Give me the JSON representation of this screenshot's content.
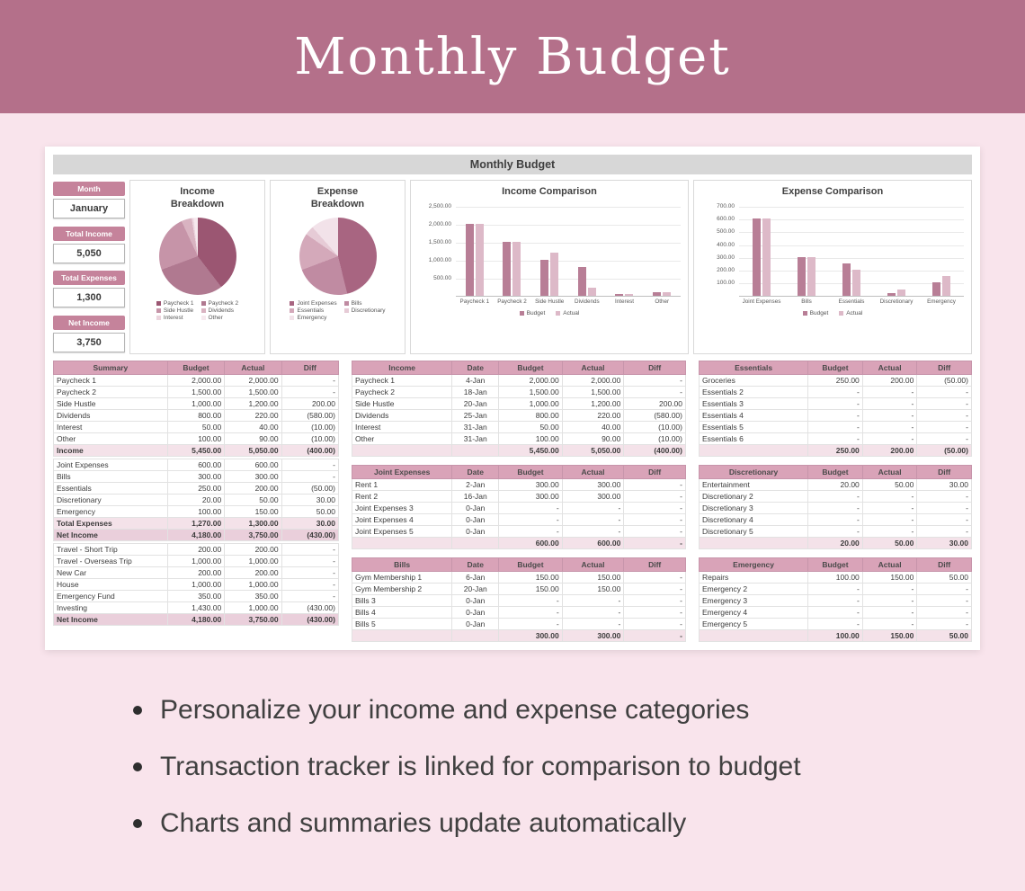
{
  "banner": {
    "title": "Monthly Budget"
  },
  "sheet": {
    "title": "Monthly Budget",
    "kpis": [
      {
        "label": "Month",
        "value": "January"
      },
      {
        "label": "Total Income",
        "value": "5,050"
      },
      {
        "label": "Total Expenses",
        "value": "1,300"
      },
      {
        "label": "Net Income",
        "value": "3,750"
      }
    ]
  },
  "colors": {
    "banner_bg": "#b4708a",
    "page_bg": "#f9e4ec",
    "kpi_header": "#c5839b",
    "table_header": "#d9a3b8",
    "total_row": "#f4e2e9",
    "net_row": "#eacfdb",
    "budget_bar": "#b87e96",
    "actual_bar": "#ddb9c8"
  },
  "chart_data": [
    {
      "type": "pie",
      "title": "Income Breakdown",
      "labels": [
        "Paycheck 1",
        "Paycheck 2",
        "Side Hustle",
        "Dividends",
        "Interest",
        "Other"
      ],
      "values": [
        2000,
        1500,
        1200,
        220,
        40,
        90
      ],
      "colors": [
        "#9b5672",
        "#b07990",
        "#c694a8",
        "#d9b3c1",
        "#ecd5de",
        "#f6e9ee"
      ],
      "legend_position": "bottom"
    },
    {
      "type": "pie",
      "title": "Expense Breakdown",
      "labels": [
        "Joint Expenses",
        "Bills",
        "Essentials",
        "Discretionary",
        "Emergency"
      ],
      "values": [
        600,
        300,
        200,
        50,
        150
      ],
      "colors": [
        "#a86581",
        "#c08ba2",
        "#d4a9ba",
        "#e6cbd6",
        "#f2e2e9"
      ],
      "legend_position": "bottom"
    },
    {
      "type": "bar",
      "title": "Income Comparison",
      "categories": [
        "Paycheck 1",
        "Paycheck 2",
        "Side Hustle",
        "Dividends",
        "Interest",
        "Other"
      ],
      "series": [
        {
          "name": "Budget",
          "color": "#b87e96",
          "values": [
            2000,
            1500,
            1000,
            800,
            50,
            100
          ]
        },
        {
          "name": "Actual",
          "color": "#ddb9c8",
          "values": [
            2000,
            1500,
            1200,
            220,
            40,
            90
          ]
        }
      ],
      "ylim": [
        0,
        2500
      ],
      "ytick_labels": [
        "2,500.00",
        "2,000.00",
        "1,500.00",
        "1,000.00",
        "500.00"
      ],
      "ytick_values": [
        2500,
        2000,
        1500,
        1000,
        500
      ],
      "grid": true,
      "legend_position": "bottom"
    },
    {
      "type": "bar",
      "title": "Expense Comparison",
      "categories": [
        "Joint Expenses",
        "Bills",
        "Essentials",
        "Discretionary",
        "Emergency"
      ],
      "series": [
        {
          "name": "Budget",
          "color": "#b87e96",
          "values": [
            600,
            300,
            250,
            20,
            100
          ]
        },
        {
          "name": "Actual",
          "color": "#ddb9c8",
          "values": [
            600,
            300,
            200,
            50,
            150
          ]
        }
      ],
      "ylim": [
        0,
        700
      ],
      "ytick_labels": [
        "700.00",
        "600.00",
        "500.00",
        "400.00",
        "300.00",
        "200.00",
        "100.00"
      ],
      "ytick_values": [
        700,
        600,
        500,
        400,
        300,
        200,
        100
      ],
      "grid": true,
      "legend_position": "bottom"
    }
  ],
  "tables": {
    "summary": {
      "headers": [
        "Summary",
        "Budget",
        "Actual",
        "Diff"
      ],
      "widths": [
        "40%",
        "20%",
        "20%",
        "20%"
      ],
      "rows": [
        {
          "cells": [
            "Paycheck 1",
            "2,000.00",
            "2,000.00",
            "-"
          ]
        },
        {
          "cells": [
            "Paycheck 2",
            "1,500.00",
            "1,500.00",
            "-"
          ]
        },
        {
          "cells": [
            "Side Hustle",
            "1,000.00",
            "1,200.00",
            "200.00"
          ]
        },
        {
          "cells": [
            "Dividends",
            "800.00",
            "220.00",
            "(580.00)"
          ]
        },
        {
          "cells": [
            "Interest",
            "50.00",
            "40.00",
            "(10.00)"
          ]
        },
        {
          "cells": [
            "Other",
            "100.00",
            "90.00",
            "(10.00)"
          ]
        },
        {
          "cells": [
            "Income",
            "5,450.00",
            "5,050.00",
            "(400.00)"
          ],
          "style": "total"
        },
        {
          "cells": [
            "",
            "",
            "",
            ""
          ],
          "style": "blank"
        },
        {
          "cells": [
            "Joint Expenses",
            "600.00",
            "600.00",
            "-"
          ]
        },
        {
          "cells": [
            "Bills",
            "300.00",
            "300.00",
            "-"
          ]
        },
        {
          "cells": [
            "Essentials",
            "250.00",
            "200.00",
            "(50.00)"
          ]
        },
        {
          "cells": [
            "Discretionary",
            "20.00",
            "50.00",
            "30.00"
          ]
        },
        {
          "cells": [
            "Emergency",
            "100.00",
            "150.00",
            "50.00"
          ]
        },
        {
          "cells": [
            "Total Expenses",
            "1,270.00",
            "1,300.00",
            "30.00"
          ],
          "style": "total"
        },
        {
          "cells": [
            "Net Income",
            "4,180.00",
            "3,750.00",
            "(430.00)"
          ],
          "style": "net"
        },
        {
          "cells": [
            "",
            "",
            "",
            ""
          ],
          "style": "blank"
        },
        {
          "cells": [
            "Travel - Short Trip",
            "200.00",
            "200.00",
            "-"
          ]
        },
        {
          "cells": [
            "Travel - Overseas Trip",
            "1,000.00",
            "1,000.00",
            "-"
          ]
        },
        {
          "cells": [
            "New Car",
            "200.00",
            "200.00",
            "-"
          ]
        },
        {
          "cells": [
            "House",
            "1,000.00",
            "1,000.00",
            "-"
          ]
        },
        {
          "cells": [
            "Emergency Fund",
            "350.00",
            "350.00",
            "-"
          ]
        },
        {
          "cells": [
            "Investing",
            "1,430.00",
            "1,000.00",
            "(430.00)"
          ]
        },
        {
          "cells": [
            "Net Income",
            "4,180.00",
            "3,750.00",
            "(430.00)"
          ],
          "style": "net"
        }
      ]
    },
    "income": {
      "headers": [
        "Income",
        "Date",
        "Budget",
        "Actual",
        "Diff"
      ],
      "widths": [
        "30%",
        "14%",
        "19%",
        "18.5%",
        "18.5%"
      ],
      "rows": [
        {
          "cells": [
            "Paycheck 1",
            "4-Jan",
            "2,000.00",
            "2,000.00",
            "-"
          ]
        },
        {
          "cells": [
            "Paycheck 2",
            "18-Jan",
            "1,500.00",
            "1,500.00",
            "-"
          ]
        },
        {
          "cells": [
            "Side Hustle",
            "20-Jan",
            "1,000.00",
            "1,200.00",
            "200.00"
          ]
        },
        {
          "cells": [
            "Dividends",
            "25-Jan",
            "800.00",
            "220.00",
            "(580.00)"
          ]
        },
        {
          "cells": [
            "Interest",
            "31-Jan",
            "50.00",
            "40.00",
            "(10.00)"
          ]
        },
        {
          "cells": [
            "Other",
            "31-Jan",
            "100.00",
            "90.00",
            "(10.00)"
          ]
        },
        {
          "cells": [
            "",
            "",
            "5,450.00",
            "5,050.00",
            "(400.00)"
          ],
          "style": "total"
        }
      ]
    },
    "joint_expenses": {
      "headers": [
        "Joint Expenses",
        "Date",
        "Budget",
        "Actual",
        "Diff"
      ],
      "widths": [
        "30%",
        "14%",
        "19%",
        "18.5%",
        "18.5%"
      ],
      "rows": [
        {
          "cells": [
            "Rent 1",
            "2-Jan",
            "300.00",
            "300.00",
            "-"
          ]
        },
        {
          "cells": [
            "Rent 2",
            "16-Jan",
            "300.00",
            "300.00",
            "-"
          ]
        },
        {
          "cells": [
            "Joint Expenses 3",
            "0-Jan",
            "-",
            "-",
            "-"
          ]
        },
        {
          "cells": [
            "Joint Expenses 4",
            "0-Jan",
            "-",
            "-",
            "-"
          ]
        },
        {
          "cells": [
            "Joint Expenses 5",
            "0-Jan",
            "-",
            "-",
            "-"
          ]
        },
        {
          "cells": [
            "",
            "",
            "600.00",
            "600.00",
            "-"
          ],
          "style": "total"
        }
      ]
    },
    "bills": {
      "headers": [
        "Bills",
        "Date",
        "Budget",
        "Actual",
        "Diff"
      ],
      "widths": [
        "30%",
        "14%",
        "19%",
        "18.5%",
        "18.5%"
      ],
      "rows": [
        {
          "cells": [
            "Gym Membership 1",
            "6-Jan",
            "150.00",
            "150.00",
            "-"
          ]
        },
        {
          "cells": [
            "Gym Membership 2",
            "20-Jan",
            "150.00",
            "150.00",
            "-"
          ]
        },
        {
          "cells": [
            "Bills 3",
            "0-Jan",
            "-",
            "-",
            "-"
          ]
        },
        {
          "cells": [
            "Bills 4",
            "0-Jan",
            "-",
            "-",
            "-"
          ]
        },
        {
          "cells": [
            "Bills 5",
            "0-Jan",
            "-",
            "-",
            "-"
          ]
        },
        {
          "cells": [
            "",
            "",
            "300.00",
            "300.00",
            "-"
          ],
          "style": "total"
        }
      ]
    },
    "essentials": {
      "headers": [
        "Essentials",
        "Budget",
        "Actual",
        "Diff"
      ],
      "widths": [
        "40%",
        "20%",
        "20%",
        "20%"
      ],
      "rows": [
        {
          "cells": [
            "Groceries",
            "250.00",
            "200.00",
            "(50.00)"
          ]
        },
        {
          "cells": [
            "Essentials 2",
            "-",
            "-",
            "-"
          ]
        },
        {
          "cells": [
            "Essentials 3",
            "-",
            "-",
            "-"
          ]
        },
        {
          "cells": [
            "Essentials 4",
            "-",
            "-",
            "-"
          ]
        },
        {
          "cells": [
            "Essentials 5",
            "-",
            "-",
            "-"
          ]
        },
        {
          "cells": [
            "Essentials 6",
            "-",
            "-",
            "-"
          ]
        },
        {
          "cells": [
            "",
            "250.00",
            "200.00",
            "(50.00)"
          ],
          "style": "total"
        }
      ]
    },
    "discretionary": {
      "headers": [
        "Discretionary",
        "Budget",
        "Actual",
        "Diff"
      ],
      "widths": [
        "40%",
        "20%",
        "20%",
        "20%"
      ],
      "rows": [
        {
          "cells": [
            "Entertainment",
            "20.00",
            "50.00",
            "30.00"
          ]
        },
        {
          "cells": [
            "Discretionary 2",
            "-",
            "-",
            "-"
          ]
        },
        {
          "cells": [
            "Discretionary 3",
            "-",
            "-",
            "-"
          ]
        },
        {
          "cells": [
            "Discretionary 4",
            "-",
            "-",
            "-"
          ]
        },
        {
          "cells": [
            "Discretionary 5",
            "-",
            "-",
            "-"
          ]
        },
        {
          "cells": [
            "",
            "20.00",
            "50.00",
            "30.00"
          ],
          "style": "total"
        }
      ]
    },
    "emergency": {
      "headers": [
        "Emergency",
        "Budget",
        "Actual",
        "Diff"
      ],
      "widths": [
        "40%",
        "20%",
        "20%",
        "20%"
      ],
      "rows": [
        {
          "cells": [
            "Repairs",
            "100.00",
            "150.00",
            "50.00"
          ]
        },
        {
          "cells": [
            "Emergency 2",
            "-",
            "-",
            "-"
          ]
        },
        {
          "cells": [
            "Emergency 3",
            "-",
            "-",
            "-"
          ]
        },
        {
          "cells": [
            "Emergency 4",
            "-",
            "-",
            "-"
          ]
        },
        {
          "cells": [
            "Emergency 5",
            "-",
            "-",
            "-"
          ]
        },
        {
          "cells": [
            "",
            "100.00",
            "150.00",
            "50.00"
          ],
          "style": "total"
        }
      ]
    }
  },
  "bullets": [
    "Personalize your income and expense categories",
    "Transaction tracker is linked for comparison to budget",
    "Charts and summaries update automatically"
  ]
}
